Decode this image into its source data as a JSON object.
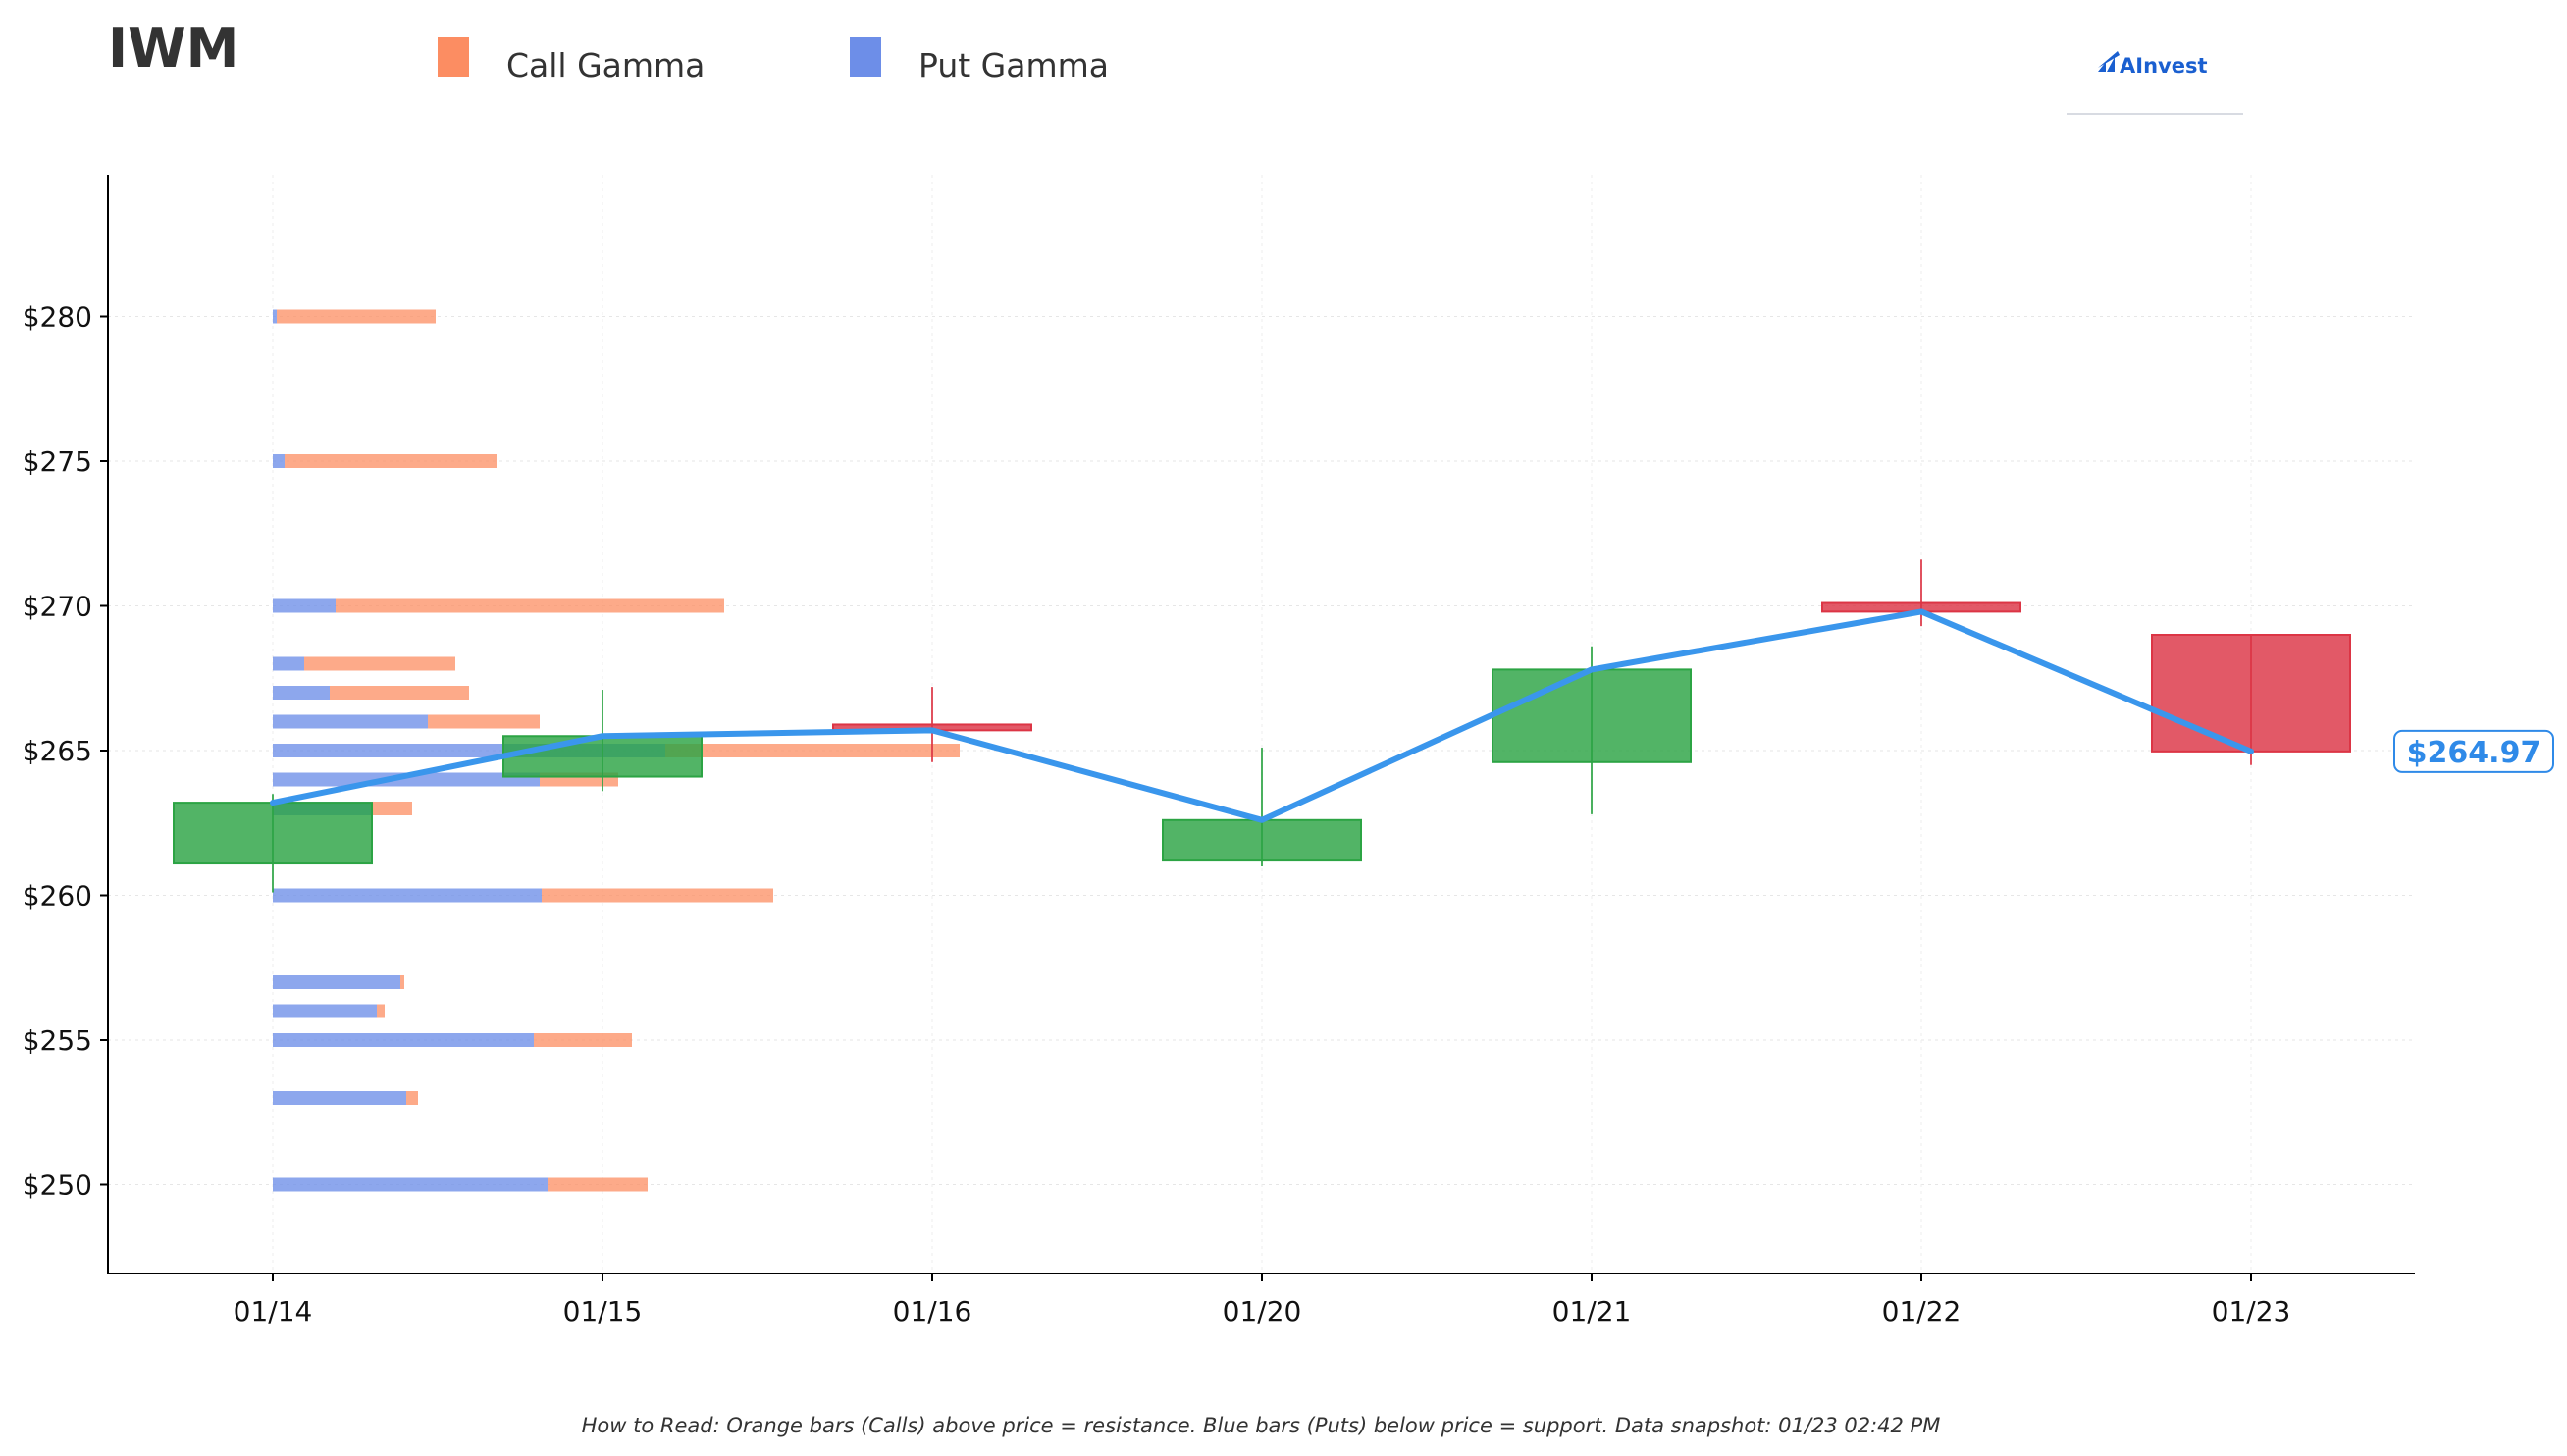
{
  "chart_data": {
    "type": "candlestick",
    "ticker": "IWM",
    "brand": "AInvest",
    "legend": [
      {
        "label": "Call Gamma",
        "color": "#fc8d62"
      },
      {
        "label": "Put Gamma",
        "color": "#6d8ee8"
      }
    ],
    "colors": {
      "call": "#fc8d62",
      "put": "#6d8ee8",
      "up": "#2ca444",
      "down": "#dc3545",
      "price_line": "#3a96ec"
    },
    "categories": [
      "01/14",
      "01/15",
      "01/16",
      "01/20",
      "01/21",
      "01/22",
      "01/23"
    ],
    "y_ticks": [
      250,
      255,
      260,
      265,
      270,
      275,
      280
    ],
    "y_tick_labels": [
      "$250",
      "$255",
      "$260",
      "$265",
      "$270",
      "$275",
      "$280"
    ],
    "ylim": [
      247,
      284.8
    ],
    "candles": [
      {
        "date": "01/14",
        "open": 261.1,
        "high": 263.5,
        "low": 260.1,
        "close": 263.2
      },
      {
        "date": "01/15",
        "open": 264.1,
        "high": 267.1,
        "low": 263.6,
        "close": 265.5
      },
      {
        "date": "01/16",
        "open": 265.9,
        "high": 267.2,
        "low": 264.6,
        "close": 265.7
      },
      {
        "date": "01/20",
        "open": 261.2,
        "high": 265.1,
        "low": 261.0,
        "close": 262.6
      },
      {
        "date": "01/21",
        "open": 264.6,
        "high": 268.6,
        "low": 262.8,
        "close": 267.8
      },
      {
        "date": "01/22",
        "open": 270.1,
        "high": 271.6,
        "low": 269.3,
        "close": 269.8
      },
      {
        "date": "01/23",
        "open": 269.0,
        "high": 269.0,
        "low": 264.5,
        "close": 264.97
      }
    ],
    "price_line": [
      263.2,
      265.5,
      265.7,
      262.6,
      267.8,
      269.8,
      264.97
    ],
    "current_price_label": "$264.97",
    "gamma_strikes": [
      {
        "strike": 280,
        "put": 0.2,
        "call": 8.1
      },
      {
        "strike": 275,
        "put": 0.6,
        "call": 10.8
      },
      {
        "strike": 270,
        "put": 3.2,
        "call": 19.8
      },
      {
        "strike": 268,
        "put": 1.6,
        "call": 7.7
      },
      {
        "strike": 267,
        "put": 2.9,
        "call": 7.1
      },
      {
        "strike": 266,
        "put": 7.9,
        "call": 5.7
      },
      {
        "strike": 265,
        "put": 20.0,
        "call": 15.0
      },
      {
        "strike": 264,
        "put": 13.6,
        "call": 4.0
      },
      {
        "strike": 263,
        "put": 5.0,
        "call": 2.1
      },
      {
        "strike": 260,
        "put": 13.7,
        "call": 11.8
      },
      {
        "strike": 257,
        "put": 6.5,
        "call": 0.2
      },
      {
        "strike": 256,
        "put": 5.3,
        "call": 0.4
      },
      {
        "strike": 255,
        "put": 13.3,
        "call": 5.0
      },
      {
        "strike": 253,
        "put": 6.8,
        "call": 0.6
      },
      {
        "strike": 250,
        "put": 14.0,
        "call": 5.1
      }
    ],
    "grid": true,
    "legend_position": "top-left"
  },
  "footer_note": "How to Read: Orange bars (Calls) above price = resistance. Blue bars (Puts) below price = support. Data snapshot: 01/23 02:42 PM"
}
